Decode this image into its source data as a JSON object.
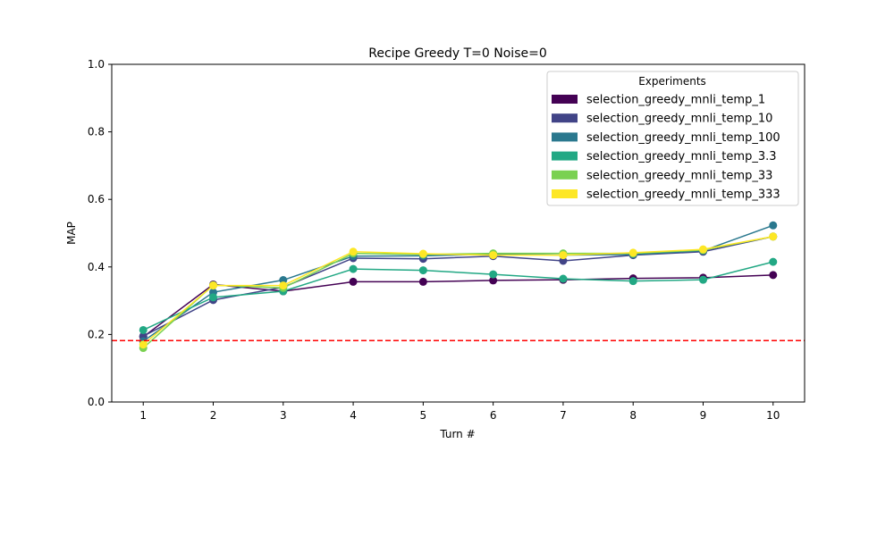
{
  "chart_data": {
    "type": "line",
    "title": "Recipe Greedy T=0 Noise=0",
    "xlabel": "Turn #",
    "ylabel": "MAP",
    "ylim": [
      0,
      1
    ],
    "x": [
      1,
      2,
      3,
      4,
      5,
      6,
      7,
      8,
      9,
      10
    ],
    "x_ticks": [
      "1",
      "2",
      "3",
      "4",
      "5",
      "6",
      "7",
      "8",
      "9",
      "10"
    ],
    "y_ticks": [
      "0.0",
      "0.2",
      "0.4",
      "0.6",
      "0.8",
      "1.0"
    ],
    "y_tick_values": [
      0,
      0.2,
      0.4,
      0.6,
      0.8,
      1.0
    ],
    "grid": false,
    "legend": {
      "title": "Experiments",
      "placement": "upper-right"
    },
    "baseline": {
      "value": 0.182,
      "color": "#ff0000",
      "style": "dashed"
    },
    "series": [
      {
        "name": "selection_greedy_mnli_temp_1",
        "color": "#440154",
        "values": [
          0.193,
          0.348,
          0.328,
          0.356,
          0.356,
          0.36,
          0.362,
          0.366,
          0.368,
          0.376
        ]
      },
      {
        "name": "selection_greedy_mnli_temp_10",
        "color": "#414487",
        "values": [
          0.195,
          0.302,
          0.34,
          0.426,
          0.424,
          0.432,
          0.418,
          0.435,
          0.445,
          0.49
        ]
      },
      {
        "name": "selection_greedy_mnli_temp_100",
        "color": "#2a788e",
        "values": [
          0.18,
          0.325,
          0.361,
          0.432,
          0.433,
          0.438,
          0.435,
          0.437,
          0.448,
          0.523
        ]
      },
      {
        "name": "selection_greedy_mnli_temp_3.3",
        "color": "#22a884",
        "values": [
          0.213,
          0.31,
          0.328,
          0.394,
          0.39,
          0.378,
          0.365,
          0.358,
          0.362,
          0.415
        ]
      },
      {
        "name": "selection_greedy_mnli_temp_33",
        "color": "#7ad151",
        "values": [
          0.16,
          0.346,
          0.338,
          0.44,
          0.437,
          0.44,
          0.44,
          0.44,
          0.45,
          0.49
        ]
      },
      {
        "name": "selection_greedy_mnli_temp_333",
        "color": "#fde725",
        "values": [
          0.17,
          0.345,
          0.345,
          0.445,
          0.439,
          0.435,
          0.435,
          0.442,
          0.452,
          0.49
        ]
      }
    ]
  }
}
